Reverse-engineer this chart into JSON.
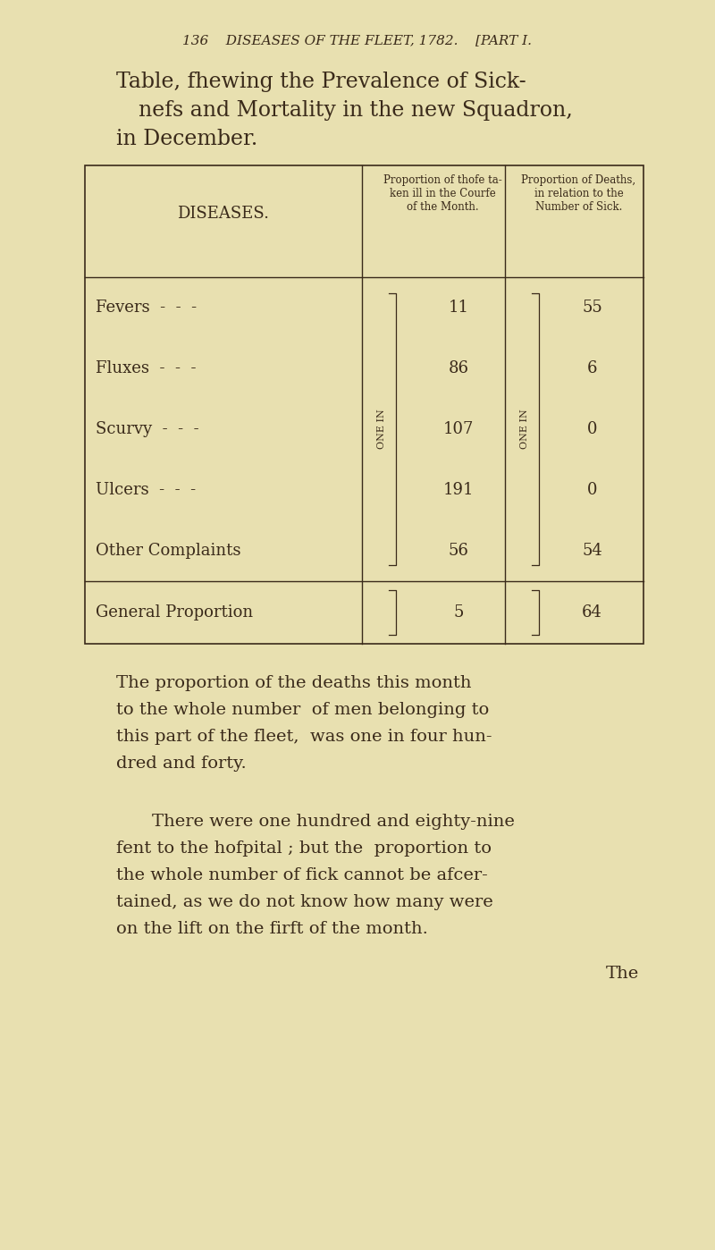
{
  "bg_color": "#e8e0b0",
  "text_color": "#3a2a1a",
  "page_header": "136    DISEASES OF THE FLEET, 1782.    [PART I.",
  "title_lines": [
    "Table, fhewing the Prevalence of Sick-",
    "nefs and Mortality in the new Squadron,",
    "in December."
  ],
  "col_header1": "DISEASES.",
  "col_header2_lines": [
    "Proportion of thofe ta-",
    "ken ill in the Courfe",
    "of the Month."
  ],
  "col_header3_lines": [
    "Proportion of Deaths,",
    "in relation to the",
    "Number of Sick."
  ],
  "diseases": [
    "Fevers  -  -  -",
    "Fluxes  -  -  -",
    "Scurvy  -  -  -",
    "Ulcers  -  -  -",
    "Other Complaints"
  ],
  "values_col2": [
    "11",
    "86",
    "107",
    "191",
    "56"
  ],
  "values_col3": [
    "55",
    "6",
    "0",
    "0",
    "54"
  ],
  "last_row_label": "General Proportion",
  "last_row_col2": "5",
  "last_row_col3": "64",
  "one_in_label_col2": "ONE IN",
  "one_in_label_col3": "ONE IN",
  "para1_lines": [
    "The proportion of the deaths this month",
    "to the whole number  of men belonging to",
    "this part of the fleet,  was one in four hun-",
    "dred and forty."
  ],
  "para2_lines": [
    "There were one hundred and eighty-nine",
    "fent to the hofpital ; but the  proportion to",
    "the whole number of fick cannot be afcer-",
    "tained, as we do not know how many were",
    "on the lift on the firft of the month."
  ],
  "last_word": "The"
}
